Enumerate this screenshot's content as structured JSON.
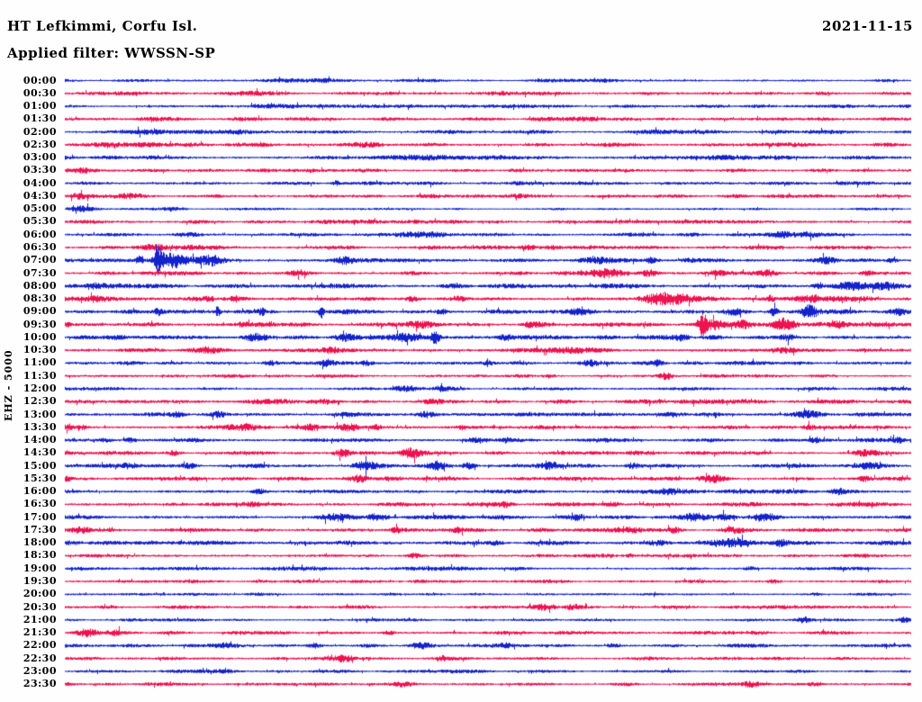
{
  "header": {
    "station_title": "HT Lefkimmi, Corfu Isl.",
    "date": "2021-11-15",
    "filter_label": "Applied filter: WWSSN-SP"
  },
  "axis": {
    "channel_label": "EHZ - 5000"
  },
  "chart_data": {
    "type": "helicorder-seismogram",
    "title": "HT Lefkimmi, Corfu Isl.",
    "date": "2021-11-15",
    "applied_filter": "WWSSN-SP",
    "channel": "EHZ",
    "scale": 5000,
    "row_duration_minutes": 30,
    "layout": {
      "rows": 48,
      "alternating_colors": true,
      "grid": false,
      "legend": false
    },
    "trace_colors": {
      "even_rows": "#1322cb",
      "odd_rows": "#ee1250"
    },
    "rows": [
      {
        "label": "00:00",
        "base": 1.3,
        "events": [
          [
            0.3,
            0.8,
            60
          ],
          [
            0.62,
            0.7,
            40
          ]
        ]
      },
      {
        "label": "00:30",
        "base": 1.5,
        "events": [
          [
            0.06,
            1.2,
            40
          ],
          [
            0.22,
            1.0,
            30
          ],
          [
            0.55,
            0.8,
            50
          ]
        ]
      },
      {
        "label": "01:00",
        "base": 1.4,
        "events": [
          [
            0.27,
            1.2,
            45
          ],
          [
            0.5,
            0.8,
            40
          ]
        ]
      },
      {
        "label": "01:30",
        "base": 1.5,
        "events": [
          [
            0.12,
            0.8,
            40
          ],
          [
            0.6,
            0.9,
            35
          ]
        ]
      },
      {
        "label": "02:00",
        "base": 1.6,
        "events": [
          [
            0.1,
            1.2,
            40
          ],
          [
            0.18,
            1.0,
            30
          ],
          [
            0.72,
            0.8,
            40
          ]
        ]
      },
      {
        "label": "02:30",
        "base": 1.7,
        "events": [
          [
            0.07,
            1.4,
            50
          ],
          [
            0.35,
            1.0,
            30
          ]
        ]
      },
      {
        "label": "03:00",
        "base": 1.7,
        "events": [
          [
            0.45,
            0.8,
            60
          ],
          [
            0.8,
            0.9,
            40
          ]
        ]
      },
      {
        "label": "03:30",
        "base": 1.5,
        "events": [
          [
            0.02,
            1.6,
            12
          ],
          [
            0.3,
            0.7,
            50
          ]
        ]
      },
      {
        "label": "04:00",
        "base": 1.5,
        "events": [
          [
            0.32,
            2.2,
            4
          ],
          [
            0.6,
            0.7,
            50
          ]
        ]
      },
      {
        "label": "04:30",
        "base": 1.6,
        "events": [
          [
            0.015,
            1.8,
            10
          ],
          [
            0.08,
            1.2,
            20
          ],
          [
            0.5,
            0.7,
            60
          ]
        ]
      },
      {
        "label": "05:00",
        "base": 1.1,
        "events": [
          [
            0.02,
            2.6,
            14
          ],
          [
            0.13,
            1.2,
            15
          ]
        ]
      },
      {
        "label": "05:30",
        "base": 1.6,
        "events": [
          [
            0.4,
            0.7,
            60
          ]
        ]
      },
      {
        "label": "06:00",
        "base": 1.7,
        "events": [
          [
            0.145,
            1.8,
            16
          ],
          [
            0.42,
            1.4,
            35
          ],
          [
            0.85,
            2.4,
            18
          ],
          [
            0.88,
            2.0,
            10
          ]
        ]
      },
      {
        "label": "06:30",
        "base": 1.6,
        "events": [
          [
            0.105,
            2.6,
            18
          ],
          [
            0.15,
            2.0,
            14
          ],
          [
            0.55,
            2.2,
            10
          ],
          [
            0.575,
            1.8,
            8
          ],
          [
            0.945,
            1.4,
            8
          ]
        ]
      },
      {
        "label": "07:00",
        "base": 1.8,
        "events": [
          [
            0.088,
            3.5,
            4
          ],
          [
            0.11,
            13,
            5
          ],
          [
            0.125,
            5.5,
            14
          ],
          [
            0.16,
            3.0,
            28
          ],
          [
            0.175,
            3.0,
            10
          ],
          [
            0.33,
            2.8,
            9
          ],
          [
            0.63,
            2.8,
            18
          ],
          [
            0.693,
            2.8,
            7
          ],
          [
            0.74,
            2.2,
            10
          ],
          [
            0.9,
            2.8,
            12
          ],
          [
            0.977,
            2.2,
            6
          ]
        ]
      },
      {
        "label": "07:30",
        "base": 1.7,
        "events": [
          [
            0.275,
            2.2,
            10
          ],
          [
            0.64,
            3.2,
            20
          ],
          [
            0.69,
            3.2,
            10
          ],
          [
            0.77,
            2.2,
            7
          ],
          [
            0.83,
            2.8,
            12
          ],
          [
            0.948,
            2.2,
            7
          ]
        ]
      },
      {
        "label": "08:00",
        "base": 2.0,
        "events": [
          [
            0.035,
            2.2,
            10
          ],
          [
            0.89,
            2.5,
            7
          ],
          [
            0.93,
            2.5,
            16
          ],
          [
            0.97,
            2.2,
            12
          ]
        ]
      },
      {
        "label": "08:30",
        "base": 1.9,
        "events": [
          [
            0.033,
            2.5,
            12
          ],
          [
            0.17,
            1.8,
            6
          ],
          [
            0.2,
            1.8,
            4
          ],
          [
            0.41,
            1.8,
            7
          ],
          [
            0.465,
            1.8,
            6
          ],
          [
            0.7,
            5.5,
            16
          ],
          [
            0.725,
            3.0,
            14
          ],
          [
            0.833,
            3.0,
            4
          ],
          [
            0.885,
            3.0,
            13
          ],
          [
            0.915,
            2.2,
            16
          ]
        ]
      },
      {
        "label": "09:00",
        "base": 2.0,
        "events": [
          [
            0.11,
            3.0,
            4
          ],
          [
            0.18,
            4.5,
            3
          ],
          [
            0.232,
            3.8,
            3
          ],
          [
            0.303,
            6.5,
            3
          ],
          [
            0.445,
            2.2,
            7
          ],
          [
            0.61,
            3.0,
            13
          ],
          [
            0.79,
            3.2,
            13
          ],
          [
            0.838,
            3.8,
            5
          ],
          [
            0.88,
            7.0,
            8
          ],
          [
            0.985,
            3.0,
            10
          ]
        ]
      },
      {
        "label": "09:30",
        "base": 1.9,
        "events": [
          [
            0.003,
            2.2,
            3
          ],
          [
            0.21,
            2.2,
            7
          ],
          [
            0.42,
            2.6,
            16
          ],
          [
            0.55,
            2.2,
            7
          ],
          [
            0.753,
            10,
            6
          ],
          [
            0.77,
            4.0,
            10
          ],
          [
            0.8,
            3.8,
            10
          ],
          [
            0.85,
            5.5,
            12
          ],
          [
            0.915,
            2.6,
            8
          ]
        ]
      },
      {
        "label": "10:00",
        "base": 1.9,
        "events": [
          [
            0.06,
            2.2,
            12
          ],
          [
            0.225,
            3.8,
            13
          ],
          [
            0.33,
            2.6,
            10
          ],
          [
            0.4,
            3.5,
            20
          ],
          [
            0.437,
            6.5,
            5
          ],
          [
            0.52,
            2.2,
            7
          ],
          [
            0.73,
            2.6,
            8
          ],
          [
            0.855,
            2.6,
            10
          ]
        ]
      },
      {
        "label": "10:30",
        "base": 1.8,
        "events": [
          [
            0.17,
            2.0,
            8
          ],
          [
            0.315,
            1.8,
            10
          ],
          [
            0.6,
            1.2,
            30
          ],
          [
            0.85,
            2.2,
            12
          ]
        ]
      },
      {
        "label": "11:00",
        "base": 1.7,
        "events": [
          [
            0.243,
            2.2,
            8
          ],
          [
            0.31,
            2.6,
            7
          ],
          [
            0.356,
            2.2,
            7
          ],
          [
            0.5,
            2.0,
            7
          ],
          [
            0.62,
            2.6,
            10
          ],
          [
            0.7,
            2.2,
            7
          ]
        ]
      },
      {
        "label": "11:30",
        "base": 1.4,
        "events": [
          [
            0.572,
            1.8,
            7
          ],
          [
            0.71,
            3.2,
            7
          ]
        ]
      },
      {
        "label": "12:00",
        "base": 1.5,
        "events": [
          [
            0.4,
            2.2,
            13
          ],
          [
            0.445,
            2.2,
            10
          ]
        ]
      },
      {
        "label": "12:30",
        "base": 1.9,
        "events": [
          [
            0.25,
            1.0,
            40
          ],
          [
            0.435,
            2.2,
            12
          ]
        ]
      },
      {
        "label": "13:00",
        "base": 2.0,
        "events": [
          [
            0.133,
            2.0,
            7
          ],
          [
            0.182,
            2.0,
            6
          ],
          [
            0.425,
            2.2,
            10
          ],
          [
            0.88,
            2.6,
            13
          ]
        ]
      },
      {
        "label": "13:30",
        "base": 1.7,
        "events": [
          [
            0.005,
            2.2,
            5
          ],
          [
            0.02,
            2.0,
            4
          ],
          [
            0.21,
            3.0,
            16
          ],
          [
            0.29,
            2.2,
            7
          ],
          [
            0.335,
            3.4,
            12
          ],
          [
            0.367,
            2.2,
            6
          ],
          [
            0.47,
            1.8,
            6
          ],
          [
            0.88,
            1.8,
            7
          ]
        ]
      },
      {
        "label": "14:00",
        "base": 1.8,
        "events": [
          [
            0.046,
            1.8,
            7
          ],
          [
            0.078,
            1.8,
            6
          ],
          [
            0.487,
            2.2,
            10
          ],
          [
            0.52,
            2.0,
            7
          ],
          [
            0.886,
            1.8,
            7
          ],
          [
            0.985,
            2.2,
            7
          ]
        ]
      },
      {
        "label": "14:30",
        "base": 1.6,
        "events": [
          [
            0.129,
            2.2,
            8
          ],
          [
            0.328,
            3.4,
            10
          ],
          [
            0.41,
            4.2,
            12
          ],
          [
            0.67,
            1.8,
            7
          ],
          [
            0.945,
            3.0,
            14
          ]
        ]
      },
      {
        "label": "15:00",
        "base": 1.8,
        "events": [
          [
            0.074,
            2.2,
            7
          ],
          [
            0.147,
            2.6,
            8
          ],
          [
            0.355,
            4.2,
            14
          ],
          [
            0.44,
            3.8,
            8
          ],
          [
            0.477,
            3.0,
            7
          ],
          [
            0.575,
            3.0,
            12
          ],
          [
            0.67,
            2.6,
            7
          ],
          [
            0.95,
            3.0,
            16
          ]
        ]
      },
      {
        "label": "15:30",
        "base": 1.6,
        "events": [
          [
            0.003,
            2.0,
            4
          ],
          [
            0.347,
            3.4,
            10
          ],
          [
            0.765,
            3.4,
            15
          ],
          [
            0.945,
            2.2,
            7
          ],
          [
            0.99,
            2.2,
            5
          ]
        ]
      },
      {
        "label": "16:00",
        "base": 1.8,
        "events": [
          [
            0.229,
            2.6,
            8
          ],
          [
            0.715,
            3.0,
            13
          ],
          [
            0.913,
            2.2,
            8
          ]
        ]
      },
      {
        "label": "16:30",
        "base": 1.7,
        "events": [
          [
            0.22,
            2.0,
            14
          ],
          [
            0.52,
            2.2,
            7
          ],
          [
            0.647,
            1.8,
            7
          ]
        ]
      },
      {
        "label": "17:00",
        "base": 1.9,
        "events": [
          [
            0.32,
            3.8,
            18
          ],
          [
            0.37,
            3.4,
            10
          ],
          [
            0.605,
            2.8,
            10
          ],
          [
            0.745,
            3.0,
            14
          ],
          [
            0.78,
            2.8,
            10
          ],
          [
            0.825,
            4.2,
            14
          ]
        ]
      },
      {
        "label": "17:30",
        "base": 1.7,
        "events": [
          [
            0.019,
            3.0,
            9
          ],
          [
            0.392,
            2.6,
            8
          ],
          [
            0.463,
            2.2,
            6
          ],
          [
            0.665,
            2.4,
            12
          ],
          [
            0.72,
            2.0,
            7
          ],
          [
            0.79,
            2.4,
            14
          ]
        ]
      },
      {
        "label": "18:00",
        "base": 1.8,
        "events": [
          [
            0.51,
            2.2,
            8
          ],
          [
            0.7,
            2.4,
            12
          ],
          [
            0.79,
            4.0,
            18
          ],
          [
            0.845,
            2.6,
            8
          ]
        ]
      },
      {
        "label": "18:30",
        "base": 1.6,
        "events": [
          [
            0.413,
            2.2,
            7
          ],
          [
            0.668,
            1.6,
            6
          ]
        ]
      },
      {
        "label": "19:00",
        "base": 1.6,
        "events": [
          [
            0.42,
            1.0,
            40
          ],
          [
            0.81,
            1.6,
            6
          ]
        ]
      },
      {
        "label": "19:30",
        "base": 1.4,
        "events": [
          [
            0.42,
            1.2,
            10
          ],
          [
            0.838,
            1.8,
            7
          ]
        ]
      },
      {
        "label": "20:00",
        "base": 1.4,
        "events": [
          [
            0.886,
            1.4,
            6
          ]
        ]
      },
      {
        "label": "20:30",
        "base": 1.5,
        "events": [
          [
            0.565,
            3.4,
            14
          ],
          [
            0.6,
            2.2,
            8
          ]
        ]
      },
      {
        "label": "21:00",
        "base": 1.4,
        "events": [
          [
            0.873,
            2.6,
            8
          ],
          [
            0.99,
            1.8,
            5
          ]
        ]
      },
      {
        "label": "21:30",
        "base": 1.5,
        "events": [
          [
            0.025,
            3.4,
            11
          ],
          [
            0.06,
            2.2,
            6
          ],
          [
            0.383,
            2.0,
            6
          ]
        ]
      },
      {
        "label": "22:00",
        "base": 1.6,
        "events": [
          [
            0.19,
            2.2,
            18
          ],
          [
            0.295,
            2.2,
            7
          ],
          [
            0.42,
            3.4,
            12
          ],
          [
            0.52,
            1.8,
            6
          ],
          [
            0.647,
            1.8,
            6
          ]
        ]
      },
      {
        "label": "22:30",
        "base": 1.5,
        "events": [
          [
            0.33,
            3.4,
            12
          ],
          [
            0.445,
            2.2,
            8
          ]
        ]
      },
      {
        "label": "23:00",
        "base": 1.4,
        "events": [
          [
            0.19,
            1.4,
            8
          ]
        ]
      },
      {
        "label": "23:30",
        "base": 1.5,
        "events": [
          [
            0.4,
            2.2,
            12
          ],
          [
            0.81,
            2.2,
            10
          ],
          [
            0.886,
            1.8,
            7
          ]
        ]
      }
    ]
  }
}
